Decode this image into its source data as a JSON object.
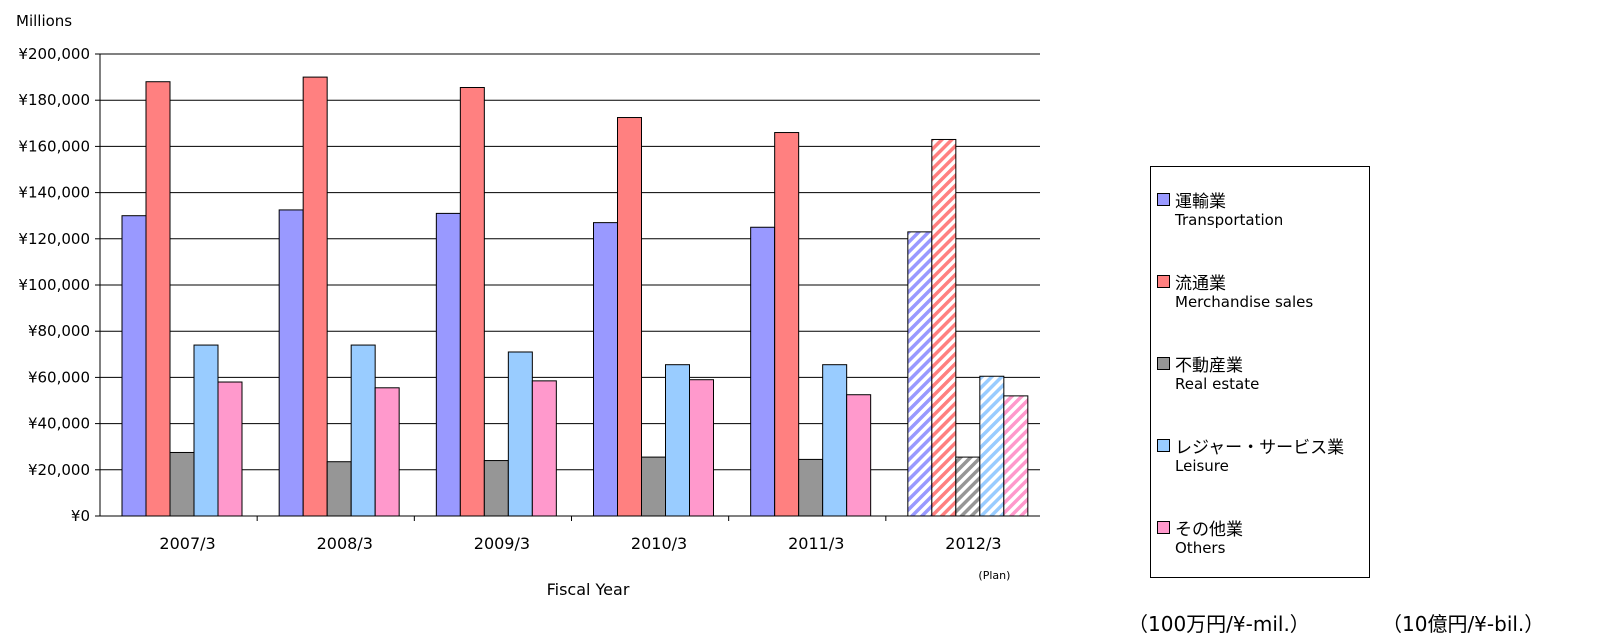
{
  "chart_data": {
    "type": "bar",
    "ylabel": "Millions",
    "xlabel": "Fiscal Year",
    "ylim": [
      0,
      200000
    ],
    "y_ticks": [
      "¥0",
      "¥20,000",
      "¥40,000",
      "¥60,000",
      "¥80,000",
      "¥100,000",
      "¥120,000",
      "¥140,000",
      "¥160,000",
      "¥180,000",
      "¥200,000"
    ],
    "grid": true,
    "legend_position": "right",
    "categories": [
      "2007/3",
      "2008/3",
      "2009/3",
      "2010/3",
      "2011/3",
      "2012/3"
    ],
    "category_notes": [
      "",
      "",
      "",
      "",
      "",
      "(Plan)"
    ],
    "hatched_categories": [
      "2012/3"
    ],
    "series": [
      {
        "name_ja": "運輸業",
        "name": "Transportation",
        "color": "#9999ff",
        "values": [
          130000,
          132500,
          131000,
          127000,
          125000,
          123000
        ]
      },
      {
        "name_ja": "流通業",
        "name": "Merchandise sales",
        "color": "#ff8080",
        "values": [
          188000,
          190000,
          185500,
          172500,
          166000,
          163000
        ]
      },
      {
        "name_ja": "不動産業",
        "name": "Real estate",
        "color": "#969696",
        "values": [
          27500,
          23500,
          24000,
          25500,
          24500,
          25500
        ]
      },
      {
        "name_ja": "レジャー・サービス業",
        "name": "Leisure",
        "color": "#99ccff",
        "values": [
          74000,
          74000,
          71000,
          65500,
          65500,
          60500
        ]
      },
      {
        "name_ja": "その他業",
        "name": "Others",
        "color": "#ff99cc",
        "values": [
          58000,
          55500,
          58500,
          59000,
          52500,
          52000
        ]
      }
    ]
  },
  "units": {
    "mil": "（100万円/¥-mil.）",
    "bil": "（10億円/¥-bil.）"
  }
}
